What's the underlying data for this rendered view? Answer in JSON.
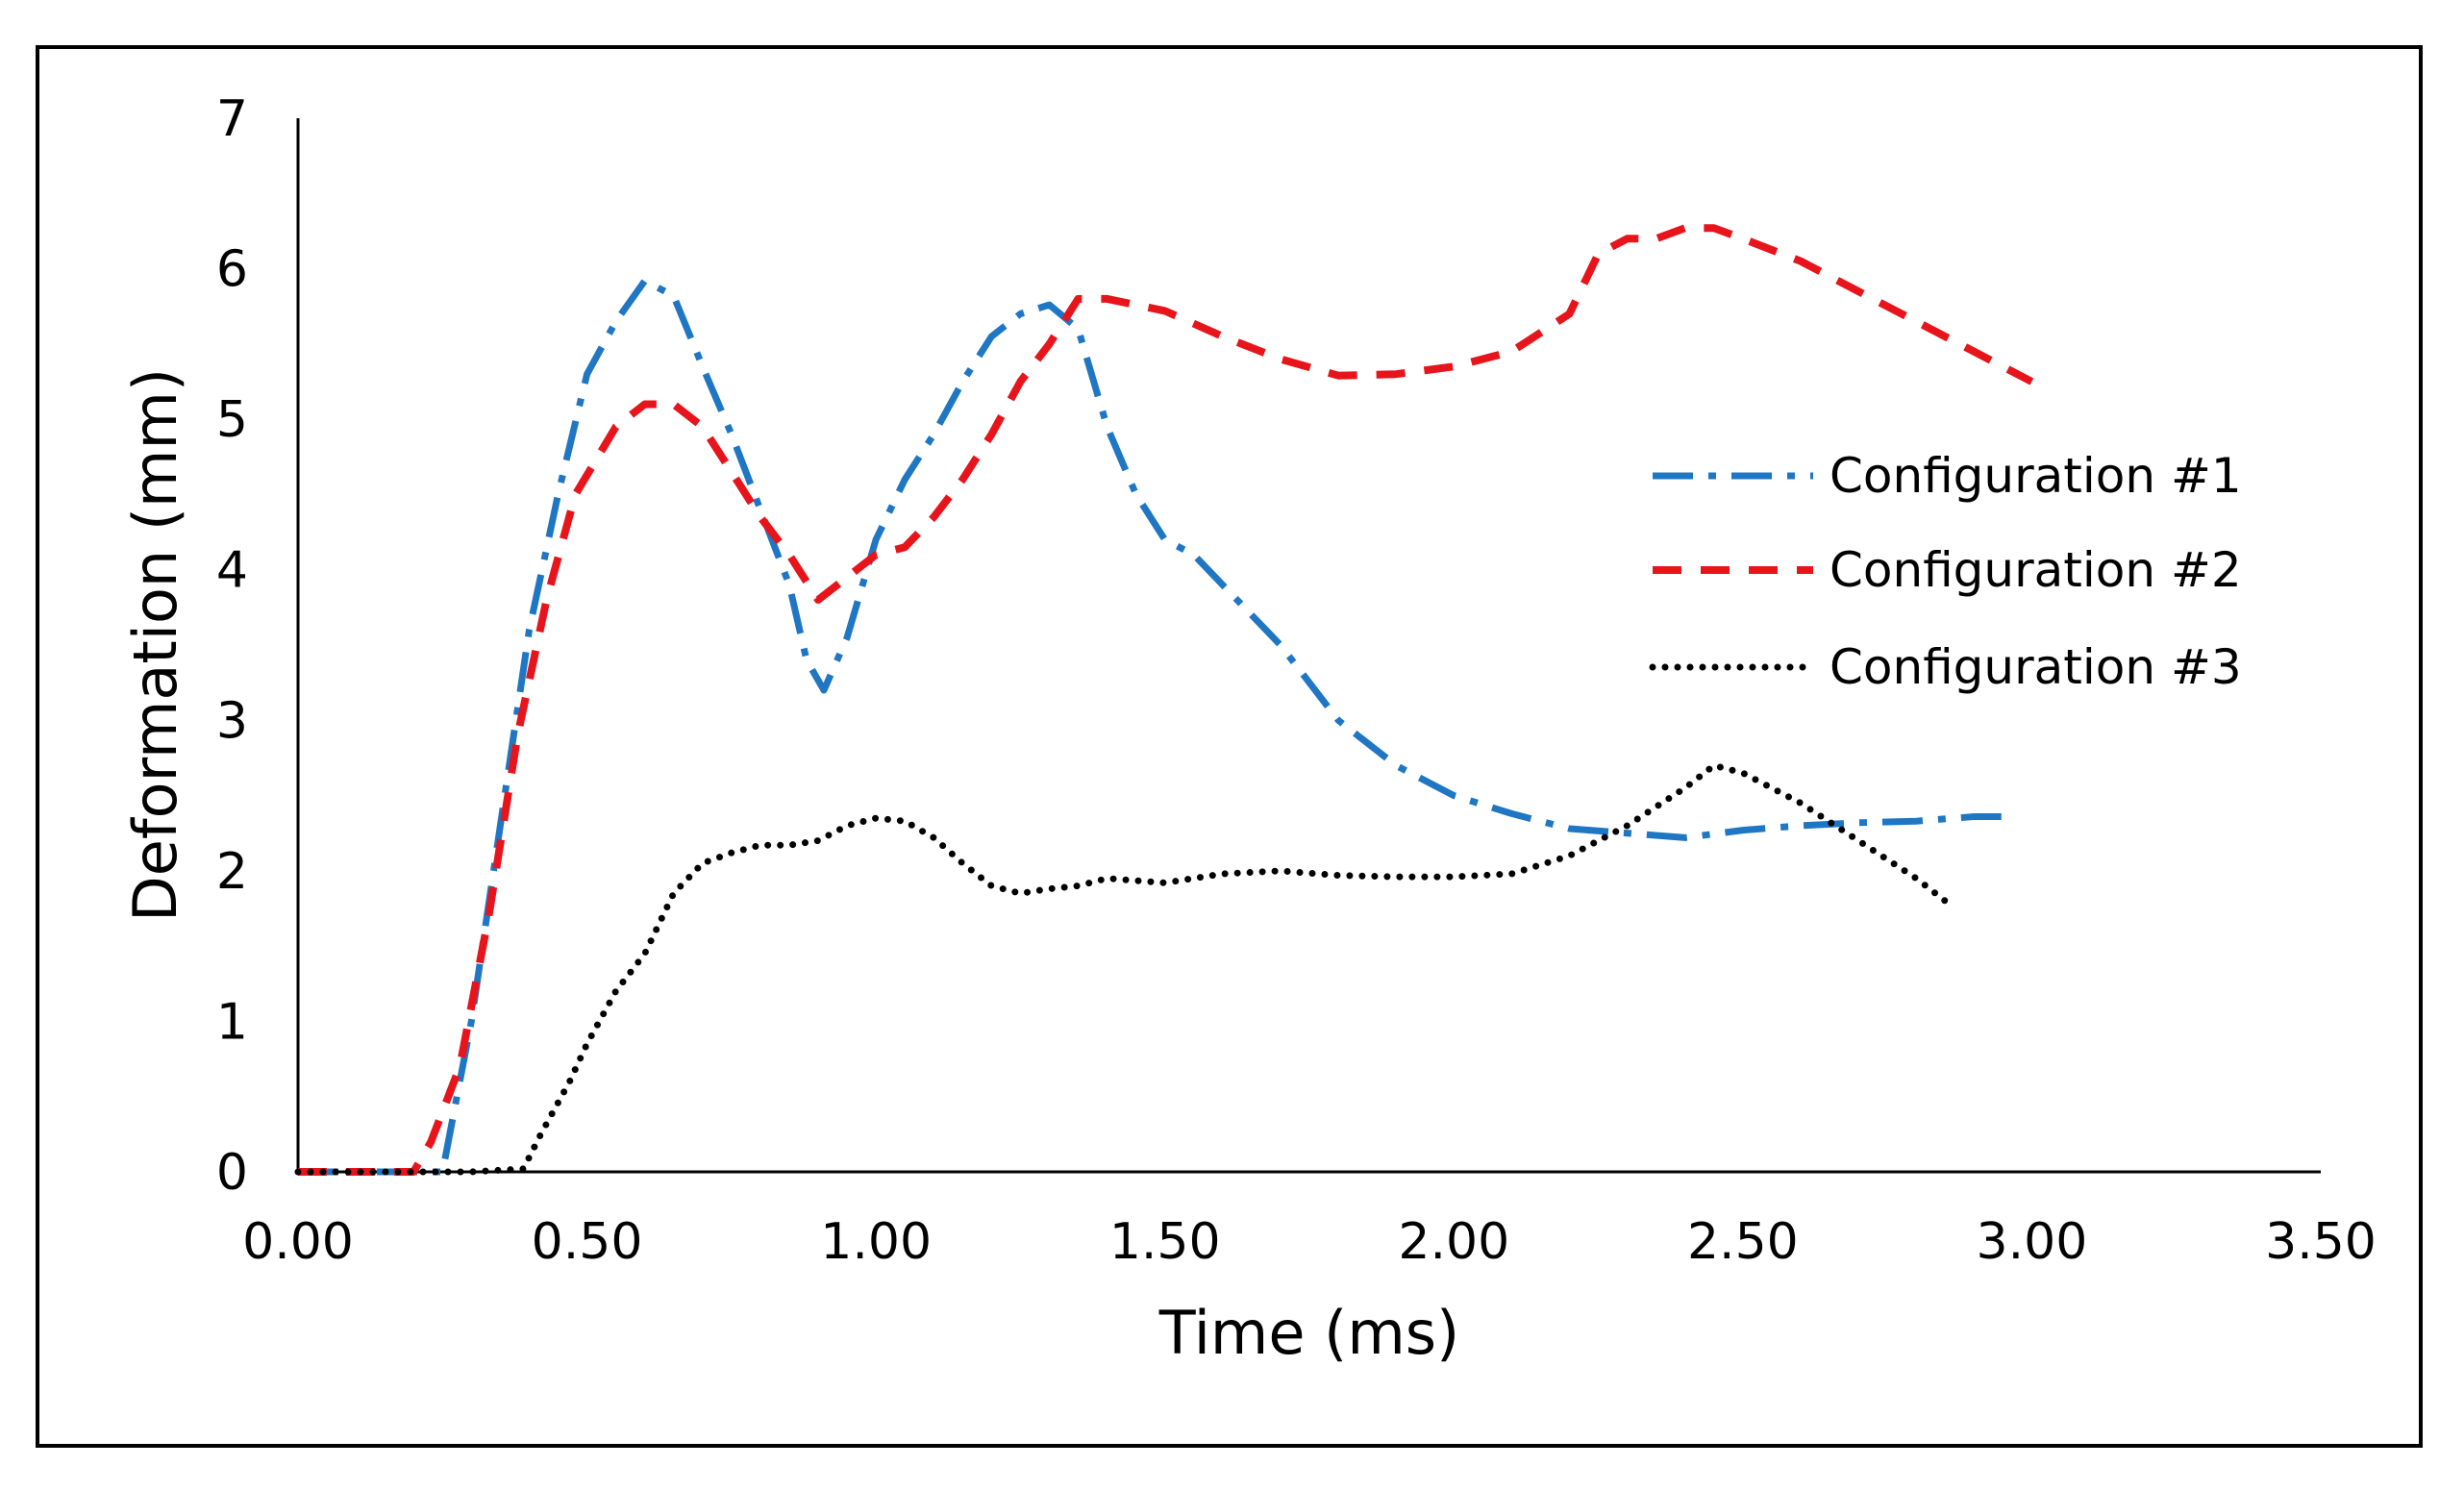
{
  "chart_data": {
    "type": "line",
    "title": "",
    "xlabel": "Time (ms)",
    "ylabel": "Deformation (mm)",
    "xlim": [
      0,
      3.5
    ],
    "ylim": [
      0,
      7
    ],
    "x_ticks": [
      0,
      0.5,
      1.0,
      1.5,
      2.0,
      2.5,
      3.0,
      3.5
    ],
    "x_tick_labels": [
      "0.00",
      "0.50",
      "1.00",
      "1.50",
      "2.00",
      "2.50",
      "3.00",
      "3.50"
    ],
    "y_ticks": [
      0,
      1,
      2,
      3,
      4,
      5,
      6,
      7
    ],
    "y_tick_labels": [
      "0",
      "1",
      "2",
      "3",
      "4",
      "5",
      "6",
      "7"
    ],
    "grid": false,
    "legend_position": "right",
    "series": [
      {
        "name": "Configuration #1",
        "color": "#1f77c4",
        "style": "dash-dot",
        "points": [
          [
            0,
            0
          ],
          [
            0.1,
            0
          ],
          [
            0.2,
            0
          ],
          [
            0.25,
            0
          ],
          [
            0.3,
            1.0
          ],
          [
            0.35,
            2.3
          ],
          [
            0.4,
            3.6
          ],
          [
            0.45,
            4.5
          ],
          [
            0.5,
            5.3
          ],
          [
            0.55,
            5.65
          ],
          [
            0.6,
            5.92
          ],
          [
            0.65,
            5.82
          ],
          [
            0.7,
            5.35
          ],
          [
            0.75,
            4.9
          ],
          [
            0.8,
            4.4
          ],
          [
            0.85,
            3.9
          ],
          [
            0.88,
            3.4
          ],
          [
            0.91,
            3.2
          ],
          [
            0.95,
            3.55
          ],
          [
            1.0,
            4.2
          ],
          [
            1.05,
            4.6
          ],
          [
            1.1,
            4.9
          ],
          [
            1.15,
            5.25
          ],
          [
            1.2,
            5.55
          ],
          [
            1.25,
            5.7
          ],
          [
            1.3,
            5.76
          ],
          [
            1.35,
            5.6
          ],
          [
            1.4,
            4.95
          ],
          [
            1.45,
            4.5
          ],
          [
            1.5,
            4.2
          ],
          [
            1.55,
            4.1
          ],
          [
            1.6,
            3.9
          ],
          [
            1.7,
            3.5
          ],
          [
            1.8,
            3.0
          ],
          [
            1.9,
            2.7
          ],
          [
            2.0,
            2.5
          ],
          [
            2.1,
            2.38
          ],
          [
            2.2,
            2.28
          ],
          [
            2.3,
            2.25
          ],
          [
            2.4,
            2.22
          ],
          [
            2.5,
            2.27
          ],
          [
            2.6,
            2.3
          ],
          [
            2.7,
            2.32
          ],
          [
            2.8,
            2.33
          ],
          [
            2.9,
            2.36
          ],
          [
            2.95,
            2.36
          ]
        ]
      },
      {
        "name": "Configuration #2",
        "color": "#e8141b",
        "style": "dash",
        "points": [
          [
            0,
            0
          ],
          [
            0.1,
            0
          ],
          [
            0.2,
            0
          ],
          [
            0.23,
            0.2
          ],
          [
            0.28,
            0.7
          ],
          [
            0.33,
            1.7
          ],
          [
            0.38,
            2.9
          ],
          [
            0.43,
            3.8
          ],
          [
            0.48,
            4.5
          ],
          [
            0.55,
            4.95
          ],
          [
            0.6,
            5.1
          ],
          [
            0.65,
            5.1
          ],
          [
            0.7,
            4.95
          ],
          [
            0.75,
            4.65
          ],
          [
            0.8,
            4.35
          ],
          [
            0.85,
            4.1
          ],
          [
            0.9,
            3.8
          ],
          [
            0.95,
            3.95
          ],
          [
            1.0,
            4.1
          ],
          [
            1.05,
            4.15
          ],
          [
            1.1,
            4.35
          ],
          [
            1.15,
            4.6
          ],
          [
            1.2,
            4.9
          ],
          [
            1.25,
            5.25
          ],
          [
            1.3,
            5.5
          ],
          [
            1.35,
            5.8
          ],
          [
            1.4,
            5.8
          ],
          [
            1.5,
            5.72
          ],
          [
            1.6,
            5.55
          ],
          [
            1.7,
            5.4
          ],
          [
            1.8,
            5.29
          ],
          [
            1.9,
            5.3
          ],
          [
            2.0,
            5.35
          ],
          [
            2.1,
            5.45
          ],
          [
            2.2,
            5.7
          ],
          [
            2.25,
            6.1
          ],
          [
            2.3,
            6.2
          ],
          [
            2.35,
            6.2
          ],
          [
            2.4,
            6.27
          ],
          [
            2.45,
            6.27
          ],
          [
            2.5,
            6.2
          ],
          [
            2.6,
            6.05
          ],
          [
            2.7,
            5.85
          ],
          [
            2.8,
            5.65
          ],
          [
            2.9,
            5.45
          ],
          [
            3.0,
            5.25
          ]
        ]
      },
      {
        "name": "Configuration #3",
        "color": "#000000",
        "style": "dot",
        "points": [
          [
            0,
            0
          ],
          [
            0.1,
            0
          ],
          [
            0.2,
            0
          ],
          [
            0.3,
            0
          ],
          [
            0.39,
            0.02
          ],
          [
            0.42,
            0.25
          ],
          [
            0.47,
            0.6
          ],
          [
            0.5,
            0.85
          ],
          [
            0.55,
            1.2
          ],
          [
            0.6,
            1.45
          ],
          [
            0.65,
            1.85
          ],
          [
            0.7,
            2.05
          ],
          [
            0.75,
            2.12
          ],
          [
            0.8,
            2.17
          ],
          [
            0.85,
            2.17
          ],
          [
            0.9,
            2.2
          ],
          [
            0.95,
            2.3
          ],
          [
            1.0,
            2.35
          ],
          [
            1.05,
            2.33
          ],
          [
            1.1,
            2.22
          ],
          [
            1.15,
            2.05
          ],
          [
            1.2,
            1.9
          ],
          [
            1.25,
            1.85
          ],
          [
            1.3,
            1.88
          ],
          [
            1.35,
            1.9
          ],
          [
            1.4,
            1.95
          ],
          [
            1.5,
            1.92
          ],
          [
            1.6,
            1.98
          ],
          [
            1.7,
            2.0
          ],
          [
            1.8,
            1.97
          ],
          [
            1.9,
            1.96
          ],
          [
            2.0,
            1.96
          ],
          [
            2.1,
            1.98
          ],
          [
            2.2,
            2.1
          ],
          [
            2.3,
            2.3
          ],
          [
            2.4,
            2.55
          ],
          [
            2.45,
            2.7
          ],
          [
            2.5,
            2.65
          ],
          [
            2.6,
            2.45
          ],
          [
            2.7,
            2.2
          ],
          [
            2.8,
            1.95
          ],
          [
            2.85,
            1.8
          ]
        ]
      }
    ]
  }
}
